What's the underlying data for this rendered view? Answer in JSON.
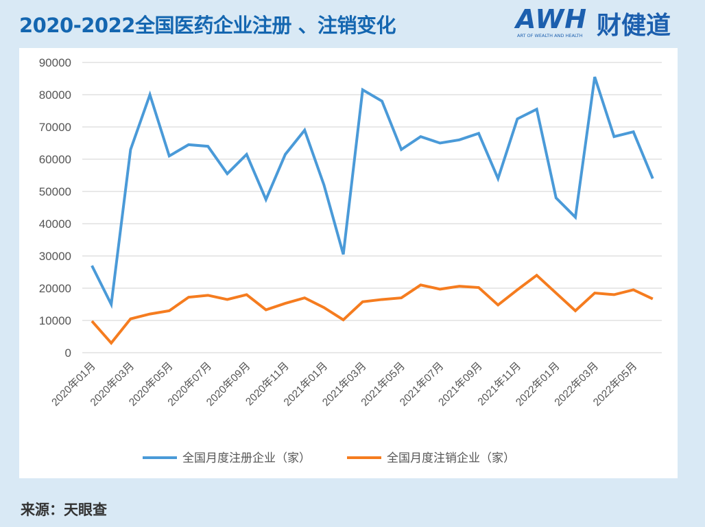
{
  "title": "2020-2022全国医药企业注册 、注销变化",
  "logo": {
    "mark": "AWH财健道",
    "latin": "AWH",
    "chinese": "财健道",
    "tagline": "ART OF WEALTH AND HEALTH"
  },
  "source": "来源：天眼查",
  "chart_data": {
    "type": "line",
    "title": "",
    "xlabel": "",
    "ylabel": "",
    "ylim": [
      0,
      90000
    ],
    "y_ticks": [
      "0",
      "10000",
      "20000",
      "30000",
      "40000",
      "50000",
      "60000",
      "70000",
      "80000",
      "90000"
    ],
    "x_tick_labels": [
      "2020年01月",
      "2020年03月",
      "2020年05月",
      "2020年07月",
      "2020年09月",
      "2020年11月",
      "2021年01月",
      "2021年03月",
      "2021年05月",
      "2021年07月",
      "2021年09月",
      "2021年11月",
      "2022年01月",
      "2022年03月",
      "2022年05月"
    ],
    "grid": "horizontal",
    "legend": "bottom",
    "series": [
      {
        "name": "全国月度注册企业（家）",
        "color": "#4a9ad8",
        "values": [
          27000,
          15000,
          63000,
          80000,
          61000,
          64500,
          64000,
          55500,
          61500,
          47500,
          61500,
          69000,
          52000,
          30500,
          81500,
          78000,
          63000,
          67000,
          65000,
          66000,
          68000,
          54000,
          72500,
          75500,
          48000,
          42000,
          85500,
          67000,
          68500,
          54000
        ]
      },
      {
        "name": "全国月度注销企业（家）",
        "color": "#f57c1f",
        "values": [
          9800,
          3000,
          10500,
          12000,
          13000,
          17200,
          17800,
          16500,
          18000,
          13300,
          15300,
          17000,
          14000,
          10200,
          15800,
          16500,
          17000,
          21000,
          19700,
          20600,
          20200,
          14800,
          19500,
          24000,
          18500,
          13000,
          18500,
          18000,
          19500,
          16700
        ]
      }
    ]
  }
}
